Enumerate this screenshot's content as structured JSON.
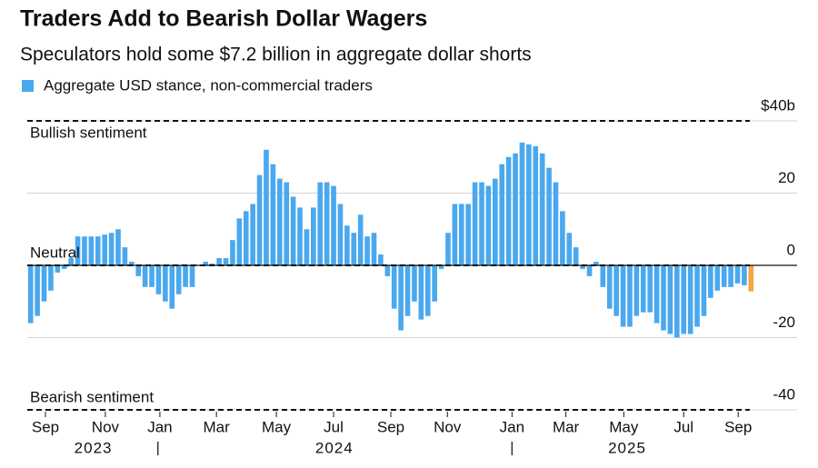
{
  "chart_data": {
    "type": "bar",
    "title": "Traders Add to Bearish Dollar Wagers",
    "subtitle": "Speculators hold some $7.2 billion in aggregate dollar shorts",
    "legend": "Aggregate USD stance, non-commercial traders",
    "color": "#4aa8ee",
    "last_color": "#f5a542",
    "values": [
      -16,
      -14,
      -10,
      -7,
      -2,
      -1,
      2,
      8,
      8,
      8,
      8,
      8.5,
      9,
      10,
      5,
      1,
      -3,
      -6,
      -6,
      -8,
      -10,
      -12,
      -8,
      -6,
      -6,
      0,
      1,
      0.5,
      2,
      2,
      7,
      13,
      15,
      17,
      25,
      32,
      28,
      24,
      23,
      19,
      16,
      10,
      16,
      23,
      23,
      22,
      17,
      11,
      9,
      14,
      8,
      9,
      3,
      -3,
      -12,
      -18,
      -14,
      -10,
      -15,
      -14,
      -10,
      -1,
      9,
      17,
      17,
      17,
      23,
      23,
      22,
      24,
      28,
      30,
      31,
      34,
      33.5,
      33,
      31,
      27,
      23,
      15,
      9,
      5,
      -1,
      -3,
      1,
      -6,
      -12,
      -14,
      -17,
      -17,
      -14,
      -13,
      -13,
      -16,
      -18,
      -19,
      -20,
      -19,
      -19,
      -17,
      -14,
      -9,
      -7,
      -6,
      -6,
      -5,
      -5.5,
      -7.2
    ],
    "xlim": [
      -0.5,
      107.5
    ],
    "xticks": [
      {
        "value": 2.2,
        "label": "Sep"
      },
      {
        "value": 11.1,
        "label": "Nov"
      },
      {
        "value": 19.2,
        "label": "Jan"
      },
      {
        "value": 27.6,
        "label": "Mar"
      },
      {
        "value": 36.5,
        "label": "May"
      },
      {
        "value": 45,
        "label": "Jul"
      },
      {
        "value": 53.5,
        "label": "Sep"
      },
      {
        "value": 61.9,
        "label": "Nov"
      },
      {
        "value": 71.5,
        "label": "Jan"
      },
      {
        "value": 79.5,
        "label": "Mar"
      },
      {
        "value": 88.1,
        "label": "May"
      },
      {
        "value": 97,
        "label": "Jul"
      },
      {
        "value": 105.1,
        "label": "Sep"
      }
    ],
    "year_labels": [
      {
        "value": 9.3,
        "label": "2023"
      },
      {
        "value": 45.1,
        "label": "2024"
      },
      {
        "value": 88.6,
        "label": "2025"
      }
    ],
    "year_separators": [
      18.9,
      71.5
    ],
    "ylim": [
      -40,
      40
    ],
    "yticks": [
      {
        "value": 40,
        "label": "$40b"
      },
      20,
      0,
      -20,
      -40
    ],
    "grid": true,
    "reference_lines": [
      40,
      0,
      -40
    ],
    "annotations": [
      {
        "value": 40,
        "label": "Bullish sentiment"
      },
      {
        "value": 0,
        "label": "Neutral"
      },
      {
        "value": -40,
        "label": "Bearish sentiment"
      }
    ]
  }
}
